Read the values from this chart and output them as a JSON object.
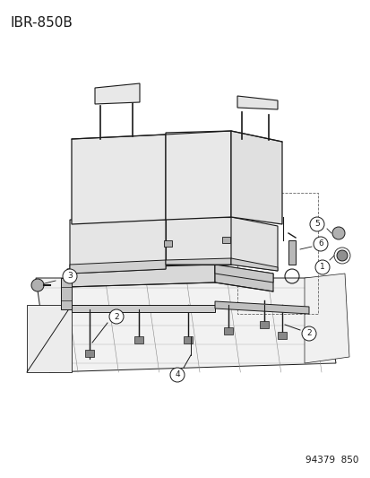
{
  "title": "IBR-850B",
  "footer": "94379  850",
  "bg_color": "#ffffff",
  "line_color": "#1a1a1a",
  "title_fontsize": 11,
  "footer_fontsize": 7.5,
  "gray_fill": "#e8e8e8",
  "dark_gray": "#c8c8c8",
  "mid_gray": "#d4d4d4",
  "callout_r": 0.018
}
